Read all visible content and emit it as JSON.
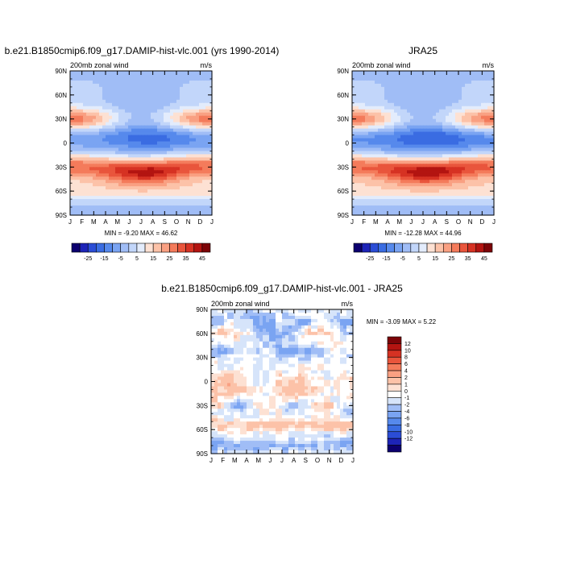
{
  "chart_data": [
    {
      "type": "heatmap",
      "title": "b.e21.B1850cmip6.f09_g17.DAMIP-hist-vlc.001 (yrs 1990-2014)",
      "left_label": "200mb zonal wind",
      "right_label": "m/s",
      "x_ticks": [
        "J",
        "F",
        "M",
        "A",
        "M",
        "J",
        "J",
        "A",
        "S",
        "O",
        "N",
        "D",
        "J"
      ],
      "y_ticks": [
        "90N",
        "60N",
        "30N",
        "0",
        "30S",
        "60S",
        "90S"
      ],
      "stats_text": "MIN =  -9.20 MAX =  46.62",
      "colorbar_labels": [
        "-25",
        "-15",
        "-5",
        "5",
        "15",
        "25",
        "35",
        "45"
      ],
      "levels": [
        -30,
        -25,
        -20,
        -15,
        -10,
        -5,
        0,
        5,
        10,
        15,
        20,
        25,
        30,
        35,
        40,
        45,
        50
      ],
      "colors": [
        "#0c006f",
        "#1d24b8",
        "#2b4dd6",
        "#3a6ce2",
        "#5689ec",
        "#7aa4f2",
        "#a0bdf6",
        "#c2d6fa",
        "#e3ecfc",
        "#fde1d3",
        "#fcc2a8",
        "#f9a082",
        "#f47b5b",
        "#e9553c",
        "#d63223",
        "#b31411",
        "#7c0408"
      ],
      "min": -9.2,
      "max": 46.62
    },
    {
      "type": "heatmap",
      "title": "JRA25",
      "left_label": "200mb zonal wind",
      "right_label": "m/s",
      "x_ticks": [
        "J",
        "F",
        "M",
        "A",
        "M",
        "J",
        "J",
        "A",
        "S",
        "O",
        "N",
        "D",
        "J"
      ],
      "y_ticks": [
        "90N",
        "60N",
        "30N",
        "0",
        "30S",
        "60S",
        "90S"
      ],
      "stats_text": "MIN = -12.28 MAX =  44.96",
      "colorbar_labels": [
        "-25",
        "-15",
        "-5",
        "5",
        "15",
        "25",
        "35",
        "45"
      ],
      "levels": [
        -30,
        -25,
        -20,
        -15,
        -10,
        -5,
        0,
        5,
        10,
        15,
        20,
        25,
        30,
        35,
        40,
        45,
        50
      ],
      "colors": [
        "#0c006f",
        "#1d24b8",
        "#2b4dd6",
        "#3a6ce2",
        "#5689ec",
        "#7aa4f2",
        "#a0bdf6",
        "#c2d6fa",
        "#e3ecfc",
        "#fde1d3",
        "#fcc2a8",
        "#f9a082",
        "#f47b5b",
        "#e9553c",
        "#d63223",
        "#b31411",
        "#7c0408"
      ],
      "min": -12.28,
      "max": 44.96
    },
    {
      "type": "heatmap",
      "title": "b.e21.B1850cmip6.f09_g17.DAMIP-hist-vlc.001 - JRA25",
      "left_label": "200mb zonal wind",
      "right_label": "m/s",
      "x_ticks": [
        "J",
        "F",
        "M",
        "A",
        "M",
        "J",
        "J",
        "A",
        "S",
        "O",
        "N",
        "D",
        "J"
      ],
      "y_ticks": [
        "90N",
        "60N",
        "30N",
        "0",
        "30S",
        "60S",
        "90S"
      ],
      "stats_text": "MIN =  -3.09 MAX =   5.22",
      "colorbar_labels": [
        "12",
        "10",
        "8",
        "6",
        "4",
        "2",
        "1",
        "0",
        "-1",
        "-2",
        "-4",
        "-6",
        "-8",
        "-10",
        "-12"
      ],
      "levels": [
        -14,
        -12,
        -10,
        -8,
        -6,
        -4,
        -2,
        -1,
        0,
        1,
        2,
        4,
        6,
        8,
        10,
        12,
        14
      ],
      "colors": [
        "#0c006f",
        "#1d24b8",
        "#2b4dd6",
        "#3a6ce2",
        "#5689ec",
        "#7aa4f2",
        "#a0bdf6",
        "#d6e4fa",
        "#ffffff",
        "#fde1d3",
        "#fcc2a8",
        "#f9a082",
        "#f47b5b",
        "#e9553c",
        "#d63223",
        "#b31411",
        "#7c0408"
      ],
      "min": -3.09,
      "max": 5.22
    }
  ]
}
